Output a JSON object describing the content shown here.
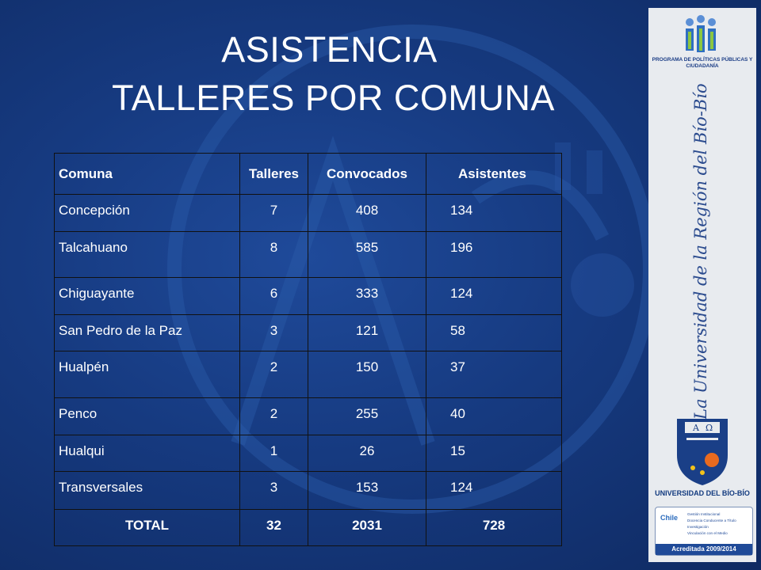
{
  "title": {
    "line1": "ASISTENCIA",
    "line2": "TALLERES POR COMUNA"
  },
  "table": {
    "headers": [
      "Comuna",
      "Talleres",
      "Convocados",
      "Asistentes"
    ],
    "rows": [
      [
        "Concepción",
        "7",
        "408",
        "134"
      ],
      [
        "Talcahuano",
        "8",
        "585",
        "196"
      ],
      [
        "Chiguayante",
        "6",
        "333",
        "124"
      ],
      [
        "San Pedro de la Paz",
        "3",
        "121",
        "58"
      ],
      [
        "Hualpén",
        "2",
        "150",
        "37"
      ],
      [
        "Penco",
        "2",
        "255",
        "40"
      ],
      [
        "Hualqui",
        "1",
        "26",
        "15"
      ],
      [
        "Transversales",
        "3",
        "153",
        "124"
      ]
    ],
    "total": [
      "TOTAL",
      "32",
      "2031",
      "728"
    ]
  },
  "sidebar": {
    "program_logo_text": "PROGRAMA DE POLÍTICAS PÚBLICAS Y CIUDADANÍA",
    "slogan": "La Universidad de la Región del Bío-Bío",
    "university_name": "UNIVERSIDAD DEL BÍO-BÍO",
    "accreditation": {
      "logo": "Chile",
      "items": [
        "Gestión Institucional",
        "Docencia Conducente a Título",
        "Investigación",
        "Vinculación con el Medio"
      ],
      "label": "Acreditada 2009/2014"
    }
  },
  "colors": {
    "background": "#163a80",
    "sidebar": "#e8ebef",
    "text": "#ffffff"
  }
}
